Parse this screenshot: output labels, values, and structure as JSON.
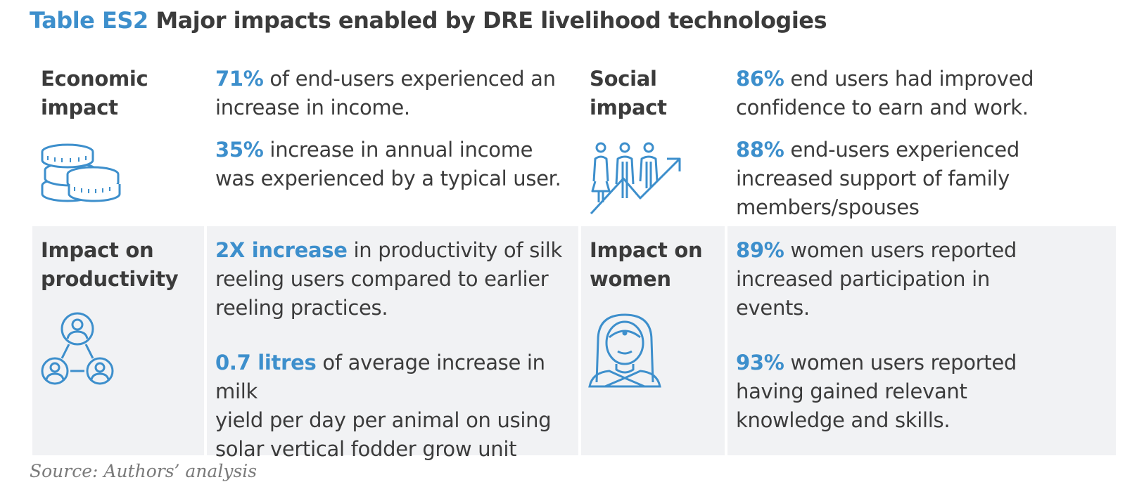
{
  "title": {
    "label": "Table ES2",
    "text": "Major impacts enabled by DRE livelihood technologies"
  },
  "colors": {
    "accent": "#3d8fcc",
    "text": "#3b3b3b",
    "shade": "#f1f2f4"
  },
  "sections": {
    "economic": {
      "heading_line1": "Economic",
      "heading_line2": "impact",
      "icon": "coins-icon",
      "items": [
        {
          "highlight": "71%",
          "text_line1": " of end-users experienced an",
          "text_line2": "increase in income."
        },
        {
          "highlight": "35%",
          "text_line1": " increase in annual income",
          "text_line2": "was experienced by a typical user."
        }
      ]
    },
    "social": {
      "heading_line1": "Social",
      "heading_line2": "impact",
      "icon": "people-growth-icon",
      "items": [
        {
          "highlight": "86%",
          "text_line1": " end users had improved",
          "text_line2": "confidence to earn and work."
        },
        {
          "highlight": "88%",
          "text_line1": " end-users experienced",
          "text_line2": "increased support of family",
          "text_line3": "members/spouses"
        }
      ]
    },
    "productivity": {
      "heading_line1": "Impact on",
      "heading_line2": "productivity",
      "icon": "user-network-icon",
      "items": [
        {
          "highlight": "2X increase",
          "text_line1": " in productivity of silk",
          "text_line2": "reeling users compared to earlier",
          "text_line3": "reeling practices."
        },
        {
          "highlight": "0.7 litres",
          "text_line1": " of average increase in milk",
          "text_line2": "yield per day per animal on using",
          "text_line3": "solar vertical fodder grow unit"
        }
      ]
    },
    "women": {
      "heading_line1": "Impact on",
      "heading_line2": "women",
      "icon": "woman-icon",
      "items": [
        {
          "highlight": "89%",
          "text_line1": " women users reported",
          "text_line2": "increased participation in",
          "text_line3": "events."
        },
        {
          "highlight": "93%",
          "text_line1": " women users reported",
          "text_line2": "having gained relevant",
          "text_line3": "knowledge and skills."
        }
      ]
    }
  },
  "source": "Source: Authors’ analysis"
}
